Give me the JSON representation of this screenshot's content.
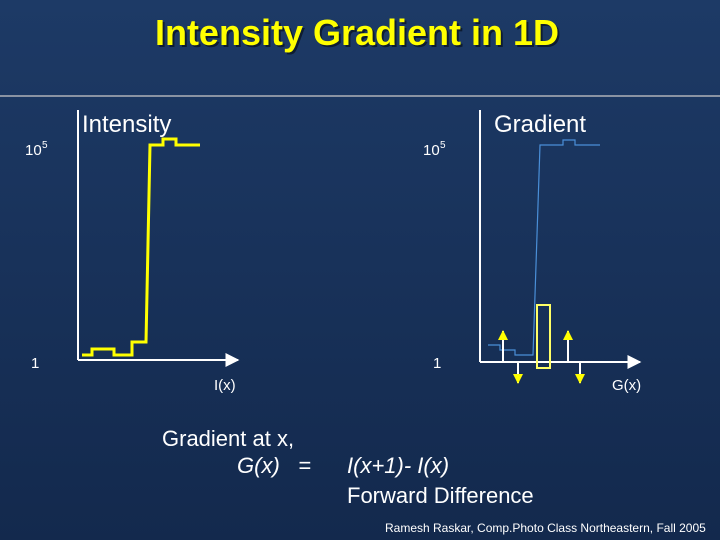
{
  "header": {
    "title": "Intensity Gradient in 1D"
  },
  "left_plot": {
    "title": "Intensity",
    "top_label": {
      "base": "10",
      "exponent": "5"
    },
    "bottom_label": "1",
    "axis_label": "I(x)"
  },
  "right_plot": {
    "title": "Gradient",
    "top_label": {
      "base": "10",
      "exponent": "5"
    },
    "bottom_label": "1",
    "axis_label": "G(x)"
  },
  "formula": {
    "intro": "Gradient at x,",
    "lhs": "G(x)   =",
    "rhs": "I(x+1)- I(x)",
    "name": "Forward Difference"
  },
  "footer": {
    "credit": "Ramesh Raskar, Comp.Photo Class Northeastern, Fall 2005"
  }
}
